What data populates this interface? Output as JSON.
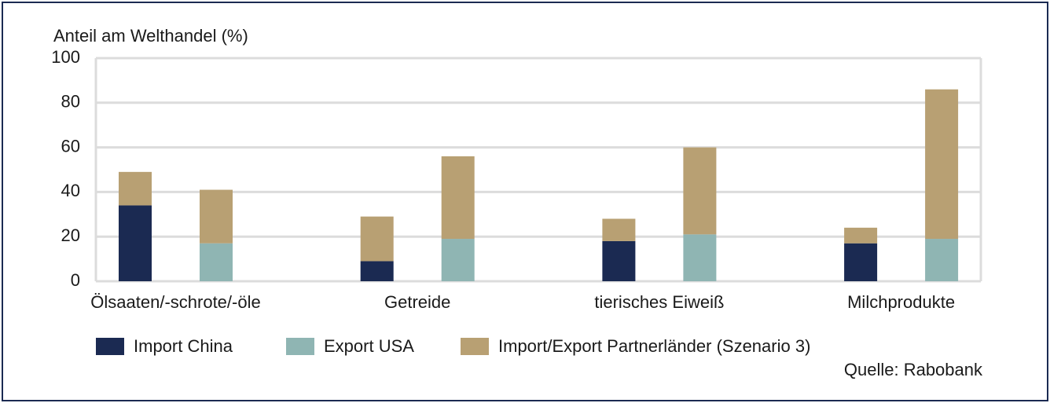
{
  "chart_data": {
    "type": "bar",
    "stacked": true,
    "title": "Anteil am Welthandel (%)",
    "categories": [
      "Ölsaaten/-schrote/-öle",
      "Getreide",
      "tierisches Eiweiß",
      "Milchprodukte"
    ],
    "series": [
      {
        "name": "Import China",
        "color": "#1b2a52",
        "values": [
          34,
          9,
          18,
          17
        ]
      },
      {
        "name": "Export USA",
        "color": "#8fb5b3",
        "values": [
          17,
          19,
          21,
          19
        ]
      },
      {
        "name": "Import/Export Partnerländer (Szenario 3)",
        "color": "#b8a073",
        "values": [
          [
            15,
            24
          ],
          [
            20,
            37
          ],
          [
            10,
            39
          ],
          [
            7,
            67
          ]
        ]
      }
    ],
    "ylim": [
      0,
      100
    ],
    "yticks": [
      0,
      20,
      40,
      60,
      80,
      100
    ],
    "grid": true,
    "source": "Quelle: Rabobank"
  }
}
